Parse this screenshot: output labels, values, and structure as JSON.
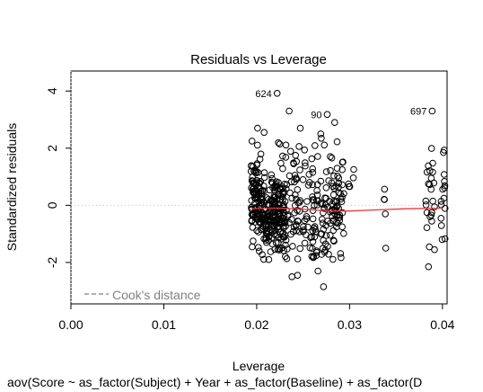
{
  "chart_data": {
    "type": "scatter",
    "title": "Residuals vs Leverage",
    "xlabel": "Leverage",
    "ylabel": "Standardized residuals",
    "subtitle": "aov(Score ~ as_factor(Subject) + Year + as_factor(Baseline) + as_factor(D",
    "xlim": [
      0.0,
      0.0405
    ],
    "ylim": [
      -3.45,
      4.7
    ],
    "xticks": [
      "0.00",
      "0.01",
      "0.02",
      "0.03",
      "0.04"
    ],
    "xtick_values": [
      0.0,
      0.01,
      0.02,
      0.03,
      0.04
    ],
    "yticks": [
      "-2",
      "0",
      "2",
      "4"
    ],
    "ytick_values": [
      -2,
      0,
      2,
      4
    ],
    "reference_lines": {
      "x": 0,
      "y": 0,
      "style": "dotted",
      "color": "#bdbdbd"
    },
    "legend": {
      "label": "Cook's distance",
      "position": "bottom-left",
      "line_style": "dashed",
      "color": "#808080"
    },
    "smooth_color": "#e8393a",
    "point_color": "#000000",
    "labeled_points": [
      {
        "label": "624",
        "x": 0.0222,
        "y": 3.92
      },
      {
        "label": "90",
        "x": 0.0276,
        "y": 3.18
      },
      {
        "label": "697",
        "x": 0.0389,
        "y": 3.3
      }
    ],
    "smooth_line": {
      "x": [
        0.0195,
        0.021,
        0.0225,
        0.024,
        0.026,
        0.028,
        0.03,
        0.033,
        0.036,
        0.04
      ],
      "y": [
        -0.12,
        -0.1,
        -0.1,
        -0.12,
        -0.16,
        -0.2,
        -0.2,
        -0.16,
        -0.12,
        -0.1
      ]
    },
    "clusters": [
      {
        "x_min": 0.0194,
        "x_max": 0.0232,
        "y_mean": -0.3,
        "y_sd": 0.75,
        "count": 230
      },
      {
        "x_min": 0.0194,
        "x_max": 0.0206,
        "y_mean": 0.9,
        "y_sd": 0.6,
        "count": 40
      },
      {
        "x_min": 0.0215,
        "x_max": 0.0262,
        "y_mean": 0.0,
        "y_sd": 1.05,
        "count": 110
      },
      {
        "x_min": 0.026,
        "x_max": 0.0294,
        "y_mean": -0.1,
        "y_sd": 1.0,
        "count": 120
      },
      {
        "x_min": 0.0298,
        "x_max": 0.0305,
        "y_mean": 0.2,
        "y_sd": 0.5,
        "count": 5
      },
      {
        "x_min": 0.0337,
        "x_max": 0.0341,
        "y_mean": 0.2,
        "y_sd": 0.7,
        "count": 4
      },
      {
        "x_min": 0.0382,
        "x_max": 0.0392,
        "y_mean": 0.1,
        "y_sd": 1.0,
        "count": 22
      },
      {
        "x_min": 0.0398,
        "x_max": 0.0403,
        "y_mean": -0.1,
        "y_sd": 0.8,
        "count": 14
      }
    ],
    "fixed_points": [
      {
        "x": 0.0208,
        "y": 2.55
      },
      {
        "x": 0.0201,
        "y": 2.7
      },
      {
        "x": 0.0235,
        "y": 3.3
      },
      {
        "x": 0.0247,
        "y": 2.7
      },
      {
        "x": 0.0269,
        "y": 2.5
      },
      {
        "x": 0.0284,
        "y": 2.9
      },
      {
        "x": 0.0388,
        "y": 0.95
      },
      {
        "x": 0.0401,
        "y": 1.85
      },
      {
        "x": 0.0385,
        "y": -2.15
      },
      {
        "x": 0.0272,
        "y": -2.85
      },
      {
        "x": 0.0244,
        "y": -2.45
      },
      {
        "x": 0.0266,
        "y": -2.3
      },
      {
        "x": 0.0339,
        "y": -1.5
      },
      {
        "x": 0.0213,
        "y": -1.9
      },
      {
        "x": 0.0238,
        "y": -2.5
      }
    ]
  }
}
